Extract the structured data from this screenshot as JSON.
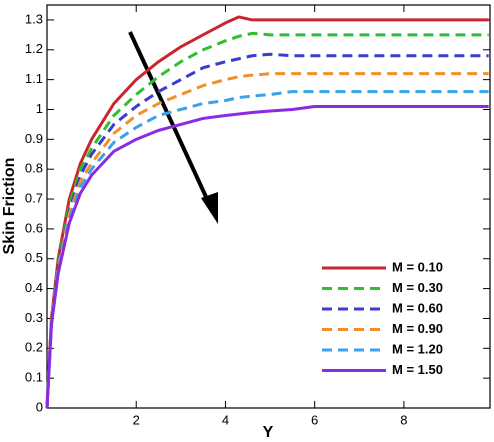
{
  "chart_data": {
    "type": "line",
    "xlabel": "Y",
    "ylabel": "Skin Friction",
    "xlim": [
      0,
      9.93
    ],
    "ylim": [
      0,
      1.35
    ],
    "xticks": [
      2,
      4,
      6,
      8
    ],
    "yticks": [
      0,
      0.1,
      0.2,
      0.3,
      0.4,
      0.5,
      0.6,
      0.7,
      0.8,
      0.9,
      1,
      1.1,
      1.2,
      1.3
    ],
    "legend": "lower right",
    "x": [
      0,
      0.1,
      0.25,
      0.5,
      0.75,
      1,
      1.5,
      2,
      2.5,
      3,
      3.5,
      4,
      4.3,
      4.6,
      5,
      5.5,
      6,
      7,
      8,
      9.9
    ],
    "series": [
      {
        "name": "M = 0.10",
        "color": "#c8262c",
        "dashed": false,
        "values": [
          0,
          0.3,
          0.5,
          0.7,
          0.82,
          0.9,
          1.02,
          1.1,
          1.16,
          1.21,
          1.25,
          1.29,
          1.31,
          1.3,
          1.3,
          1.3,
          1.3,
          1.3,
          1.3,
          1.3
        ]
      },
      {
        "name": "M = 0.30",
        "color": "#2fbf2f",
        "dashed": true,
        "values": [
          0,
          0.3,
          0.49,
          0.68,
          0.8,
          0.87,
          0.98,
          1.05,
          1.11,
          1.16,
          1.2,
          1.23,
          1.245,
          1.255,
          1.25,
          1.25,
          1.25,
          1.25,
          1.25,
          1.25
        ]
      },
      {
        "name": "M = 0.60",
        "color": "#3b3bd0",
        "dashed": true,
        "values": [
          0,
          0.29,
          0.48,
          0.66,
          0.78,
          0.85,
          0.95,
          1.01,
          1.06,
          1.1,
          1.14,
          1.16,
          1.17,
          1.18,
          1.185,
          1.18,
          1.18,
          1.18,
          1.18,
          1.18
        ]
      },
      {
        "name": "M = 0.90",
        "color": "#f0902a",
        "dashed": true,
        "values": [
          0,
          0.29,
          0.47,
          0.65,
          0.76,
          0.82,
          0.92,
          0.98,
          1.02,
          1.05,
          1.08,
          1.1,
          1.11,
          1.115,
          1.12,
          1.12,
          1.12,
          1.12,
          1.12,
          1.12
        ]
      },
      {
        "name": "M = 1.20",
        "color": "#3aa2e8",
        "dashed": true,
        "values": [
          0,
          0.28,
          0.46,
          0.63,
          0.74,
          0.8,
          0.89,
          0.94,
          0.98,
          1.0,
          1.02,
          1.03,
          1.04,
          1.045,
          1.05,
          1.06,
          1.06,
          1.06,
          1.06,
          1.06
        ]
      },
      {
        "name": "M = 1.50",
        "color": "#8a2be2",
        "dashed": false,
        "values": [
          0,
          0.28,
          0.45,
          0.62,
          0.72,
          0.78,
          0.86,
          0.9,
          0.93,
          0.95,
          0.97,
          0.98,
          0.985,
          0.99,
          0.995,
          1.0,
          1.01,
          1.01,
          1.01,
          1.01
        ]
      }
    ]
  }
}
